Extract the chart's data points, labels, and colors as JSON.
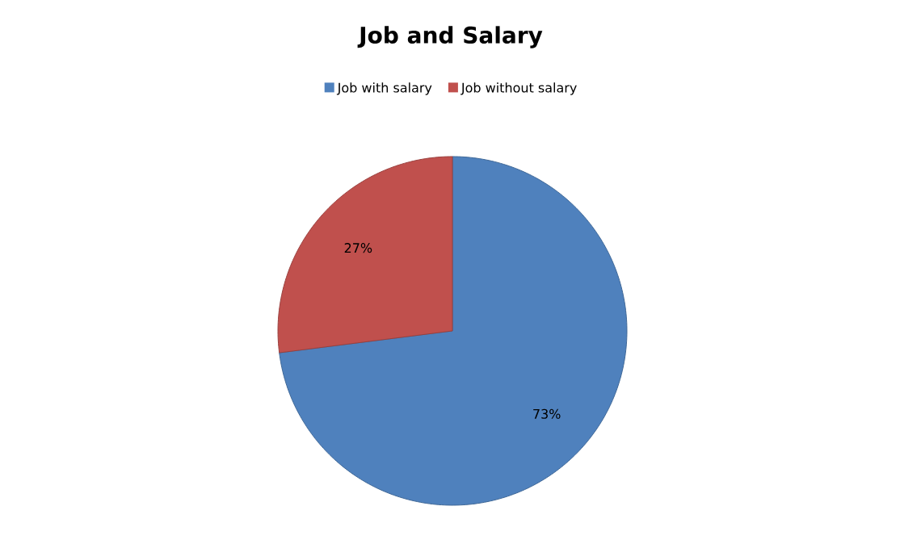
{
  "chart_data": {
    "type": "pie",
    "title": "Job and Salary",
    "categories": [
      "Job with salary",
      "Job without salary"
    ],
    "values": [
      73,
      27
    ],
    "colors": [
      "#4f81bd",
      "#c0504d"
    ],
    "value_labels": [
      "73%",
      "27%"
    ],
    "legend": "top"
  }
}
